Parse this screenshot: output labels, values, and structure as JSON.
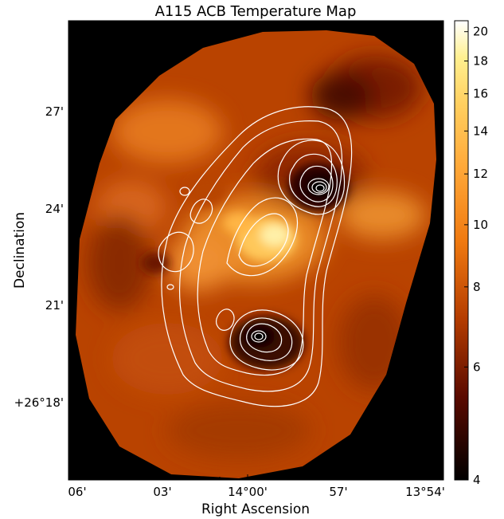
{
  "chart_data": {
    "type": "heatmap",
    "title": "A115 ACB Temperature Map",
    "xlabel": "Right Ascension",
    "ylabel": "Declination",
    "x_ticks": [
      "06'",
      "03'",
      "14°00'",
      "57'",
      "13°54'"
    ],
    "y_ticks": [
      "27'",
      "24'",
      "21'",
      "+26°18'"
    ],
    "colorbar": {
      "ticks": [
        4,
        6,
        8,
        10,
        12,
        14,
        16,
        18,
        20
      ],
      "range": [
        4,
        20.8
      ],
      "scale": "log",
      "colormap": "afmhot"
    },
    "overlay": "white X-ray surface-brightness contours",
    "grid": false,
    "legend": "none"
  }
}
